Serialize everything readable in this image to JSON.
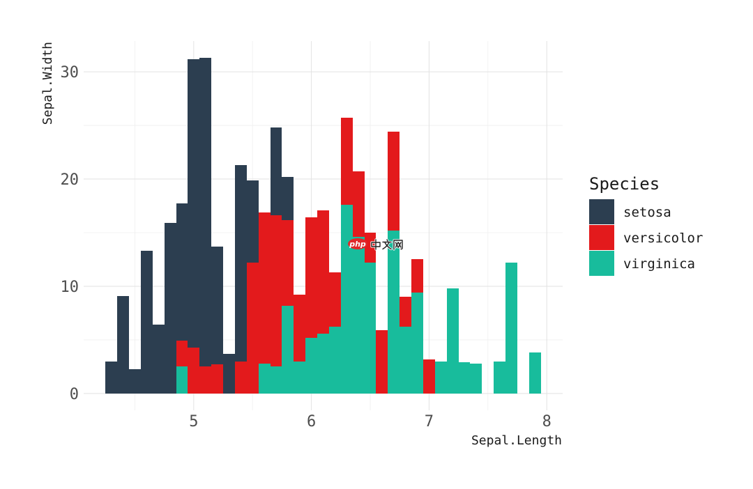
{
  "chart_data": {
    "type": "bar",
    "stacked": true,
    "xlabel": "Sepal.Length",
    "ylabel": "Sepal.Width",
    "x": [
      4.3,
      4.4,
      4.5,
      4.6,
      4.7,
      4.8,
      4.9,
      5.0,
      5.1,
      5.2,
      5.3,
      5.4,
      5.5,
      5.6,
      5.7,
      5.8,
      5.9,
      6.0,
      6.1,
      6.2,
      6.3,
      6.4,
      6.5,
      6.6,
      6.7,
      6.8,
      6.9,
      7.0,
      7.1,
      7.2,
      7.3,
      7.4,
      7.6,
      7.7,
      7.9
    ],
    "bar_width": 0.1,
    "series": [
      {
        "name": "setosa",
        "color": "#2C3E50",
        "values": [
          3.0,
          9.1,
          2.3,
          13.3,
          6.4,
          15.9,
          12.8,
          26.9,
          28.8,
          11.0,
          3.7,
          18.3,
          7.7,
          0,
          8.2,
          4.0,
          0,
          0,
          0,
          0,
          0,
          0,
          0,
          0,
          0,
          0,
          0,
          0,
          0,
          0,
          0,
          0,
          0,
          0,
          0
        ]
      },
      {
        "name": "versicolor",
        "color": "#E31A1C",
        "values": [
          0,
          0,
          0,
          0,
          0,
          0,
          2.4,
          4.3,
          2.5,
          2.7,
          0,
          3.0,
          12.2,
          14.1,
          14.1,
          8.0,
          6.2,
          11.2,
          11.5,
          5.1,
          8.1,
          6.1,
          2.8,
          5.9,
          9.2,
          2.8,
          3.1,
          3.2,
          0,
          0,
          0,
          0,
          0,
          0,
          0
        ]
      },
      {
        "name": "virginica",
        "color": "#18BC9C",
        "values": [
          0,
          0,
          0,
          0,
          0,
          0,
          2.5,
          0,
          0,
          0,
          0,
          0,
          0,
          2.8,
          2.5,
          8.2,
          3.0,
          5.2,
          5.6,
          6.2,
          17.6,
          14.6,
          12.2,
          0,
          15.2,
          6.2,
          9.4,
          0,
          3.0,
          9.8,
          2.9,
          2.8,
          3.0,
          12.2,
          3.8
        ]
      }
    ],
    "xlim": [
      4.065,
      8.135
    ],
    "ylim": [
      -1.565,
      32.865
    ],
    "x_ticks": [
      5,
      6,
      7,
      8
    ],
    "y_ticks": [
      0,
      10,
      20,
      30
    ],
    "grid": true,
    "legend": {
      "title": "Species",
      "position": "right"
    }
  },
  "watermark": {
    "logo": "php",
    "text": "中文网"
  }
}
